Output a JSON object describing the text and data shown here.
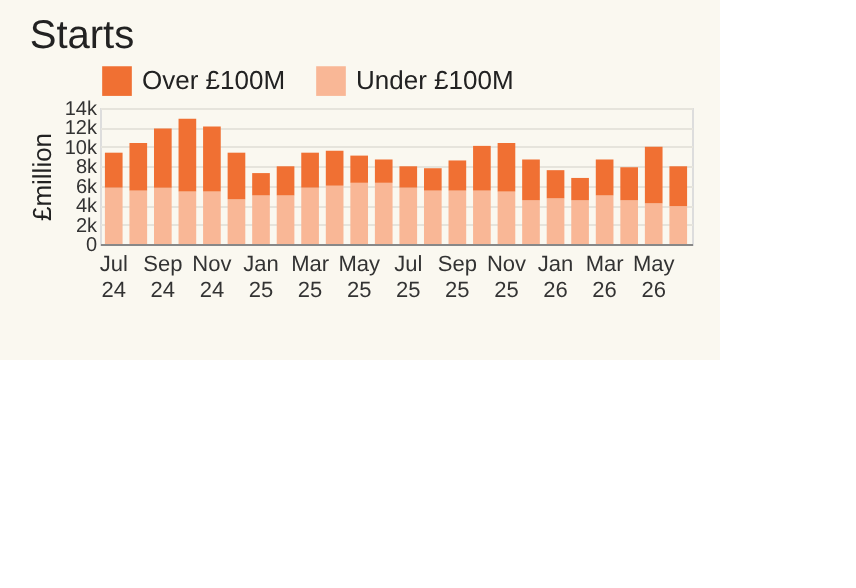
{
  "chart_data": {
    "type": "bar",
    "title": "Starts",
    "ylabel": "£million",
    "stacked": true,
    "legend": "top left",
    "grid": "y",
    "categories": [
      "Jul 24",
      null,
      "Sep 24",
      null,
      "Nov 24",
      null,
      "Jan 25",
      null,
      "Mar 25",
      null,
      "May 25",
      null,
      "Jul 25",
      null,
      "Sep 25",
      null,
      "Nov 25",
      null,
      "Jan 26",
      null,
      "Mar 26",
      null,
      "May 26",
      null
    ],
    "ylim": [
      0,
      14000
    ],
    "yticks": [
      {
        "value": 0,
        "label": "0"
      },
      {
        "value": 2000,
        "label": "2k"
      },
      {
        "value": 4000,
        "label": "4k"
      },
      {
        "value": 6000,
        "label": "6k"
      },
      {
        "value": 8000,
        "label": "8k"
      },
      {
        "value": 10000,
        "label": "10k"
      },
      {
        "value": 12000,
        "label": "12k"
      },
      {
        "value": 14000,
        "label": "14k"
      }
    ],
    "series": [
      {
        "name": "Under £100M",
        "color": "#f9b796",
        "values": [
          5800,
          5500,
          5800,
          5400,
          5400,
          4600,
          5000,
          5000,
          5800,
          6000,
          6300,
          6300,
          5800,
          5500,
          5500,
          5500,
          5400,
          4500,
          4700,
          4500,
          5000,
          4500,
          4200,
          3900
        ]
      },
      {
        "name": "Over £100M",
        "color": "#f07033",
        "values": [
          3600,
          4900,
          6100,
          7500,
          6700,
          4800,
          2300,
          3000,
          3600,
          3600,
          2800,
          2400,
          2200,
          2300,
          3100,
          4600,
          5000,
          4200,
          2900,
          2300,
          3700,
          3400,
          5800,
          4100
        ]
      }
    ]
  }
}
